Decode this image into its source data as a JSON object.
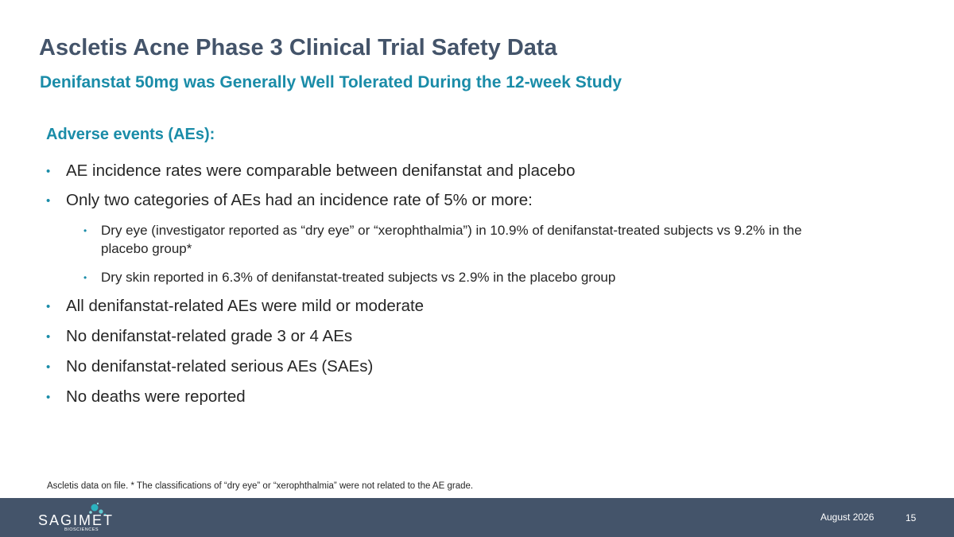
{
  "slide": {
    "title": "Ascletis Acne Phase 3 Clinical Trial Safety Data",
    "subtitle": "Denifanstat 50mg was Generally Well Tolerated During the 12-week Study",
    "section_heading": "Adverse events (AEs):",
    "bullets": [
      "AE incidence rates were comparable between denifanstat and placebo",
      "Only two categories of AEs had an incidence rate of 5% or more:",
      "All denifanstat-related AEs were mild or moderate",
      "No denifanstat-related grade 3 or 4 AEs",
      "No denifanstat-related serious AEs (SAEs)",
      "No deaths were reported"
    ],
    "sub_bullets": [
      "Dry eye (investigator reported as “dry eye” or “xerophthalmia”) in 10.9% of denifanstat-treated subjects vs 9.2% in the placebo group*",
      "Dry skin reported in 6.3% of denifanstat-treated subjects vs 2.9% in the placebo group"
    ],
    "footnote": "Ascletis data on file. * The classifications of “dry eye” or “xerophthalmia” were not related to the AE grade."
  },
  "footer": {
    "logo_text": "SAGIMET",
    "logo_subtext": "BIOSCIENCES",
    "date": "August 2026",
    "page_number": "15"
  },
  "colors": {
    "title": "#44546a",
    "accent": "#1a8ca8",
    "footer_bg": "#44546a",
    "body_text": "#262626"
  }
}
